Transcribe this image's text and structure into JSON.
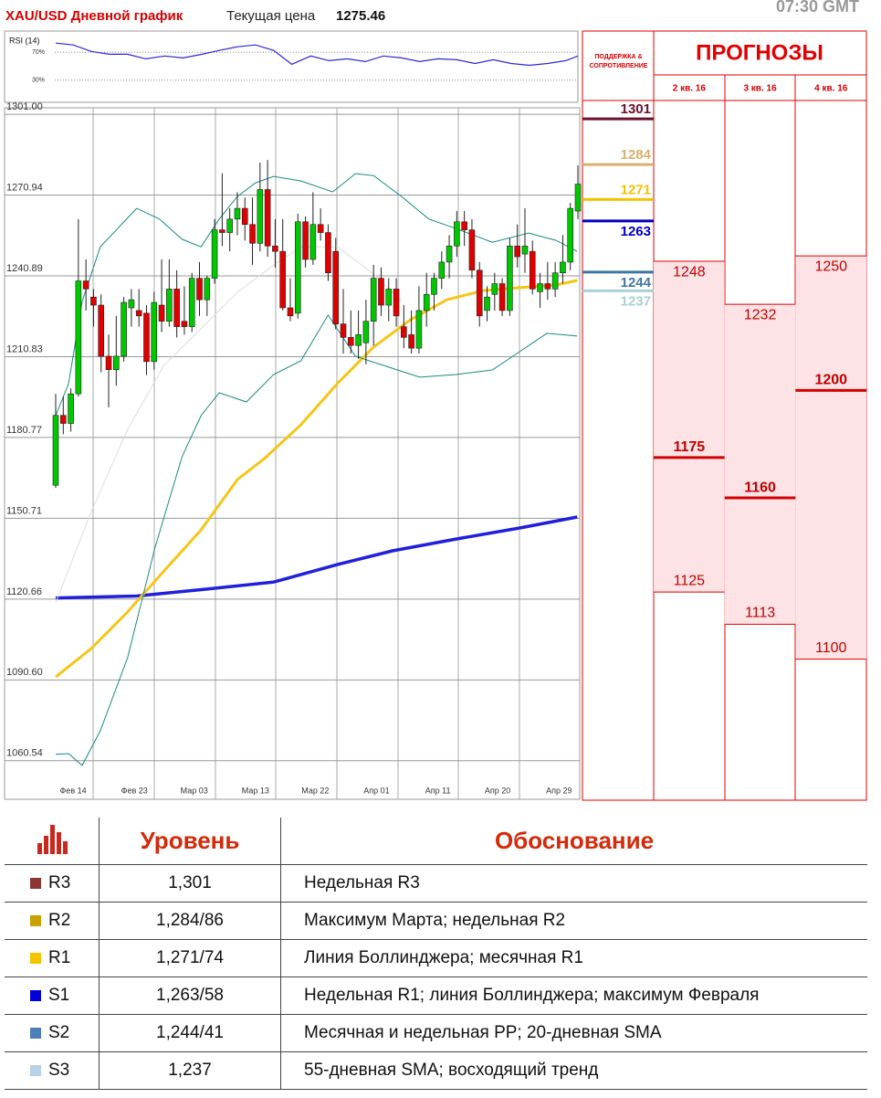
{
  "header": {
    "title": "XAU/USD Дневной график",
    "price_label": "Текущая цена",
    "price": 1275.46,
    "time": "07:30 GMT"
  },
  "rsi": {
    "type": "line",
    "label": "RSI (14)",
    "color": "#2a2ad0",
    "ylim": [
      0,
      100
    ],
    "yticks": [
      {
        "value": 70,
        "label": "70%"
      },
      {
        "value": 30,
        "label": "30%"
      }
    ],
    "x": [
      0,
      2.3,
      4.7,
      7.1,
      9.5,
      11.9,
      14.4,
      16.8,
      19.2,
      21.6,
      24,
      26.4,
      28.8,
      31.2,
      33.7,
      36.1,
      38.5,
      40.9,
      43.3,
      45.7,
      48.1,
      50.5,
      53,
      55.4,
      57.8,
      60.2,
      62.6,
      65,
      67.4,
      69
    ],
    "values": [
      83.3,
      80.7,
      71.3,
      67.3,
      67.3,
      60.7,
      64.7,
      62,
      67,
      72.7,
      78,
      80.7,
      72.7,
      52.7,
      64.7,
      58,
      60.7,
      56.7,
      64.7,
      62,
      56.7,
      60.7,
      59.3,
      54,
      59.3,
      54,
      51.3,
      54,
      58,
      64.7
    ]
  },
  "chart_data": {
    "type": "candlestick",
    "up_color": "#00c800",
    "down_color": "#e00000",
    "grid": true,
    "ylim": [
      1046.2,
      1303.4
    ],
    "yticks": [
      {
        "value": 1301,
        "label": "1301.00"
      },
      1270.94,
      1240.89,
      1210.83,
      1180.77,
      1150.71,
      1120.66,
      {
        "value": 1090.6,
        "label": "1090.60"
      },
      1060.54
    ],
    "xticks": [
      {
        "value": 2.3,
        "label": "Фев 14"
      },
      {
        "value": 10.4,
        "label": "Фев 23"
      },
      {
        "value": 18.3,
        "label": "Мар 03"
      },
      {
        "value": 26.4,
        "label": "Мар 13"
      },
      {
        "value": 34.3,
        "label": "Мар 22"
      },
      {
        "value": 42.4,
        "label": "Апр 01"
      },
      {
        "value": 50.5,
        "label": "Апр 11"
      },
      {
        "value": 58.4,
        "label": "Апр 20"
      },
      {
        "value": 66.5,
        "label": "Апр 29"
      }
    ],
    "candles": [
      [
        1163,
        1197,
        1162,
        1189
      ],
      [
        1189,
        1196,
        1182,
        1186
      ],
      [
        1186,
        1199,
        1183,
        1197
      ],
      [
        1197,
        1262,
        1196,
        1239
      ],
      [
        1239,
        1247,
        1228,
        1236
      ],
      [
        1233,
        1236,
        1222,
        1230
      ],
      [
        1230,
        1234,
        1205,
        1211
      ],
      [
        1211,
        1219,
        1192,
        1206
      ],
      [
        1206,
        1226,
        1200,
        1211
      ],
      [
        1211,
        1233,
        1209,
        1231
      ],
      [
        1229,
        1236,
        1222,
        1232
      ],
      [
        1228,
        1236,
        1222,
        1226
      ],
      [
        1227,
        1230,
        1204,
        1209
      ],
      [
        1209,
        1235,
        1206,
        1231
      ],
      [
        1230,
        1247,
        1220,
        1224
      ],
      [
        1224,
        1247,
        1222,
        1236
      ],
      [
        1236,
        1243,
        1218,
        1222
      ],
      [
        1224,
        1237,
        1219,
        1222
      ],
      [
        1222,
        1242,
        1220,
        1240
      ],
      [
        1240,
        1246,
        1226,
        1232
      ],
      [
        1232,
        1241,
        1226,
        1240
      ],
      [
        1240,
        1262,
        1238,
        1258
      ],
      [
        1258,
        1279,
        1252,
        1257
      ],
      [
        1257,
        1266,
        1250,
        1262
      ],
      [
        1262,
        1272,
        1256,
        1266
      ],
      [
        1266,
        1270,
        1254,
        1260
      ],
      [
        1260,
        1270,
        1245,
        1253
      ],
      [
        1253,
        1283,
        1250,
        1273
      ],
      [
        1273,
        1284,
        1248,
        1252
      ],
      [
        1252,
        1262,
        1244,
        1250
      ],
      [
        1250,
        1262,
        1228,
        1229
      ],
      [
        1229,
        1240,
        1224,
        1226
      ],
      [
        1227,
        1264,
        1225,
        1261
      ],
      [
        1261,
        1263,
        1244,
        1247
      ],
      [
        1247,
        1272,
        1245,
        1260
      ],
      [
        1260,
        1266,
        1254,
        1257
      ],
      [
        1257,
        1260,
        1239,
        1242
      ],
      [
        1250,
        1255,
        1221,
        1223
      ],
      [
        1223,
        1236,
        1212,
        1218
      ],
      [
        1218,
        1228,
        1212,
        1215
      ],
      [
        1215,
        1228,
        1210,
        1219
      ],
      [
        1216,
        1232,
        1208,
        1224
      ],
      [
        1224,
        1245,
        1215,
        1240
      ],
      [
        1240,
        1244,
        1226,
        1230
      ],
      [
        1230,
        1240,
        1224,
        1236
      ],
      [
        1236,
        1240,
        1222,
        1226
      ],
      [
        1222,
        1230,
        1214,
        1218
      ],
      [
        1219,
        1228,
        1212,
        1214
      ],
      [
        1214,
        1237,
        1212,
        1228
      ],
      [
        1228,
        1242,
        1222,
        1234
      ],
      [
        1234,
        1242,
        1228,
        1240
      ],
      [
        1240,
        1250,
        1236,
        1246
      ],
      [
        1246,
        1256,
        1240,
        1252
      ],
      [
        1252,
        1265,
        1248,
        1261
      ],
      [
        1261,
        1265,
        1252,
        1258
      ],
      [
        1258,
        1262,
        1240,
        1243
      ],
      [
        1243,
        1246,
        1222,
        1226
      ],
      [
        1228,
        1237,
        1224,
        1233
      ],
      [
        1234,
        1242,
        1228,
        1238
      ],
      [
        1238,
        1240,
        1226,
        1228
      ],
      [
        1228,
        1255,
        1226,
        1252
      ],
      [
        1252,
        1260,
        1244,
        1248
      ],
      [
        1249,
        1266,
        1242,
        1252
      ],
      [
        1250,
        1254,
        1234,
        1236
      ],
      [
        1235,
        1242,
        1229,
        1238
      ],
      [
        1238,
        1246,
        1232,
        1236
      ],
      [
        1236,
        1246,
        1233,
        1242
      ],
      [
        1242,
        1256,
        1238,
        1246
      ],
      [
        1246,
        1268,
        1243,
        1266
      ],
      [
        1265,
        1282,
        1262,
        1275
      ]
    ],
    "overlays": [
      {
        "color": "#2020d8",
        "width": 3.5,
        "x": [
          0,
          10.7,
          20.4,
          28.8,
          37.2,
          44.5,
          52.9,
          61.3,
          68.9
        ],
        "values": [
          1121.1,
          1121.8,
          1124.5,
          1127,
          1133.5,
          1138.6,
          1143,
          1147.1,
          1151.2
        ]
      },
      {
        "color": "#f5c518",
        "width": 3,
        "x": [
          0,
          4.7,
          9.5,
          14.3,
          19.2,
          24,
          27.6,
          32.4,
          37.2,
          42,
          46.9,
          51.7,
          56.5,
          61.3,
          66.1,
          68.9
        ],
        "values": [
          1091.7,
          1102.3,
          1115.9,
          1131.1,
          1146.4,
          1165.1,
          1173,
          1185.5,
          1200.8,
          1214.4,
          1224.6,
          1232,
          1235.4,
          1236.5,
          1237.5,
          1239.2
        ]
      },
      {
        "color": "#1a8a80",
        "width": 1,
        "x": [
          0,
          1.7,
          3.5,
          5.9,
          10.7,
          13.7,
          16.7,
          19.2,
          21.6,
          24,
          26.4,
          28.8,
          32.4,
          36.6,
          39.6,
          42,
          45.7,
          49.3,
          52.9,
          57.7,
          62.5,
          66.1,
          68.9
        ],
        "values": [
          1188.9,
          1200.8,
          1231.4,
          1251.7,
          1266,
          1262,
          1254.5,
          1251.7,
          1262,
          1270.4,
          1275.5,
          1277.9,
          1276.2,
          1272.1,
          1278.9,
          1278.2,
          1270.4,
          1262,
          1258.5,
          1253.4,
          1256.8,
          1254.1,
          1250
        ]
      },
      {
        "color": "#1a8a80",
        "width": 1,
        "x": [
          0,
          1.7,
          3.5,
          5.9,
          9.5,
          13.1,
          16.7,
          19.2,
          21.6,
          25.2,
          28.8,
          32.4,
          36,
          39.6,
          43.3,
          48.1,
          52.9,
          57.7,
          61.3,
          64.9,
          68.9
        ],
        "values": [
          1062.9,
          1063.2,
          1058.8,
          1071.7,
          1098.9,
          1139.6,
          1173.6,
          1188.9,
          1197.4,
          1194,
          1204.2,
          1209.3,
          1226.3,
          1211,
          1207.6,
          1203.2,
          1204.2,
          1205.9,
          1212.7,
          1219.5,
          1218.5
        ]
      },
      {
        "color": "#dddddd",
        "width": 1,
        "x": [
          0,
          4.7,
          9.5,
          14.3,
          19.2,
          24,
          28.8,
          32.4,
          37.2,
          42,
          45.7
        ],
        "values": [
          1119.3,
          1153.2,
          1183.8,
          1207.6,
          1221.2,
          1234.8,
          1244.9,
          1251.7,
          1251.7,
          1241.6,
          1231.4
        ]
      }
    ]
  },
  "levels": {
    "title": "ПОДДЕРЖКА & СОПРОТИВЛЕНИЕ",
    "items": [
      {
        "value": 1301,
        "color": "#6b0f2a"
      },
      {
        "value": 1284,
        "color": "#d6b06e"
      },
      {
        "value": 1271,
        "color": "#f2c200"
      },
      {
        "value": 1263,
        "color": "#0000c0"
      },
      {
        "value": 1244,
        "color": "#3f77a0"
      },
      {
        "value": 1237,
        "color": "#a9d0d6"
      }
    ]
  },
  "forecasts": {
    "title": "ПРОГНОЗЫ",
    "columns": [
      {
        "quarter": "2 кв. 16",
        "high": 1248,
        "mid": 1175,
        "low": 1125
      },
      {
        "quarter": "3 кв. 16",
        "high": 1232,
        "mid": 1160,
        "low": 1113
      },
      {
        "quarter": "4 кв. 16",
        "high": 1250,
        "mid": 1200,
        "low": 1100
      }
    ]
  },
  "table": {
    "header": [
      "Уровень",
      "Обоснование"
    ],
    "rows": [
      {
        "color": "#8b3535",
        "name": "R3",
        "value": "1,301",
        "reason": "Недельная R3"
      },
      {
        "color": "#c9a000",
        "name": "R2",
        "value": "1,284/86",
        "reason": "Максимум Марта; недельная R2"
      },
      {
        "color": "#f5c400",
        "name": "R1",
        "value": "1,271/74",
        "reason": "Линия Боллинджера; месячная R1"
      },
      {
        "color": "#0000d8",
        "name": "S1",
        "value": "1,263/58",
        "reason": "Недельная R1; линия Боллинджера; максимум Февраля"
      },
      {
        "color": "#4a7fb8",
        "name": "S2",
        "value": "1,244/41",
        "reason": "Месячная и недельная PP; 20-дневная SMA"
      },
      {
        "color": "#b8d0e8",
        "name": "S3",
        "value": "1,237",
        "reason": "55-дневная SMA; восходящий тренд"
      }
    ]
  }
}
